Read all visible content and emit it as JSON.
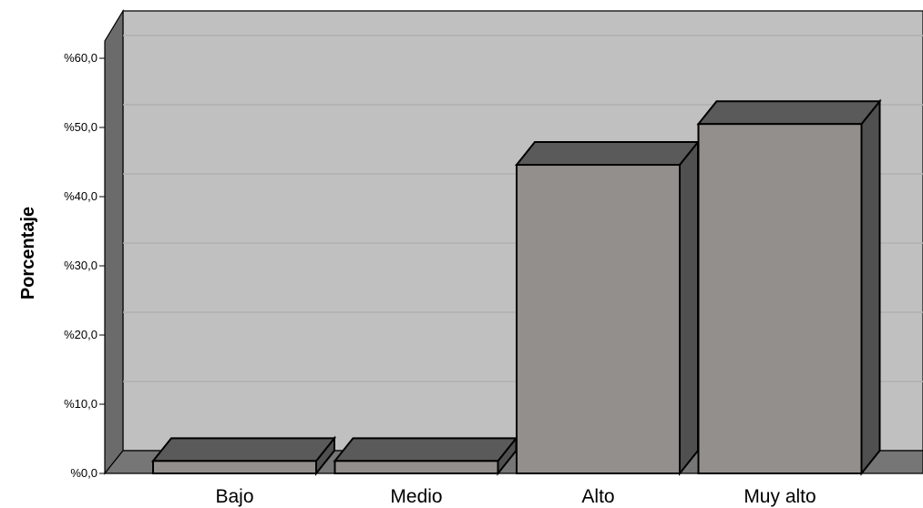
{
  "chart_data": {
    "type": "bar",
    "title": "",
    "xlabel": "",
    "ylabel": "Porcentaje",
    "categories": [
      "Bajo",
      "Medio",
      "Alto",
      "Muy alto"
    ],
    "values": [
      1.8,
      1.8,
      44.6,
      50.5
    ],
    "ylim": [
      0,
      60
    ],
    "yticks": [
      "%0,0",
      "%10,0",
      "%20,0",
      "%30,0",
      "%40,0",
      "%50,0",
      "%60,0"
    ],
    "grid": true,
    "style": "3d",
    "colors": {
      "plot_background": "#c0c0c0",
      "side_wall": "#6b6b6b",
      "floor": "#767676",
      "bar_front": "#938f8d",
      "bar_top": "#5a5a5a",
      "bar_side": "#505050",
      "gridline": "#b0b0b0",
      "outline": "#000000"
    }
  }
}
